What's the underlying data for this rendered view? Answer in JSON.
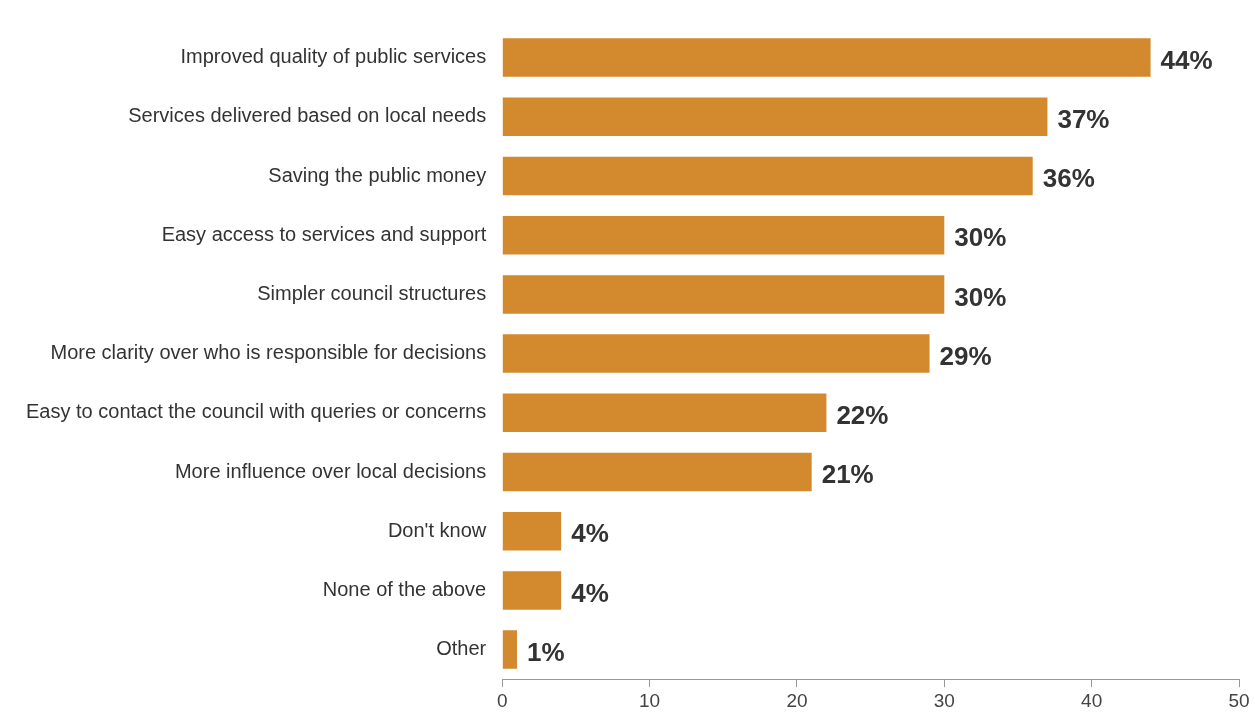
{
  "chart_data": {
    "type": "bar",
    "orientation": "horizontal",
    "categories": [
      "Improved quality of public services",
      "Services delivered based on local needs",
      "Saving the public money",
      "Easy access to services and support",
      "Simpler council structures",
      "More clarity over who is responsible for decisions",
      "Easy to contact the council with queries or concerns",
      "More influence over local decisions",
      "Don't know",
      "None of the above",
      "Other"
    ],
    "values": [
      44,
      37,
      36,
      30,
      30,
      29,
      22,
      21,
      4,
      4,
      1
    ],
    "value_labels": [
      "44%",
      "37%",
      "36%",
      "30%",
      "30%",
      "29%",
      "22%",
      "21%",
      "4%",
      "4%",
      "1%"
    ],
    "color": "#d3892e",
    "xlim": [
      0,
      50
    ],
    "xticks": [
      0,
      10,
      20,
      30,
      40,
      50
    ],
    "grid": false,
    "legend": false
  }
}
